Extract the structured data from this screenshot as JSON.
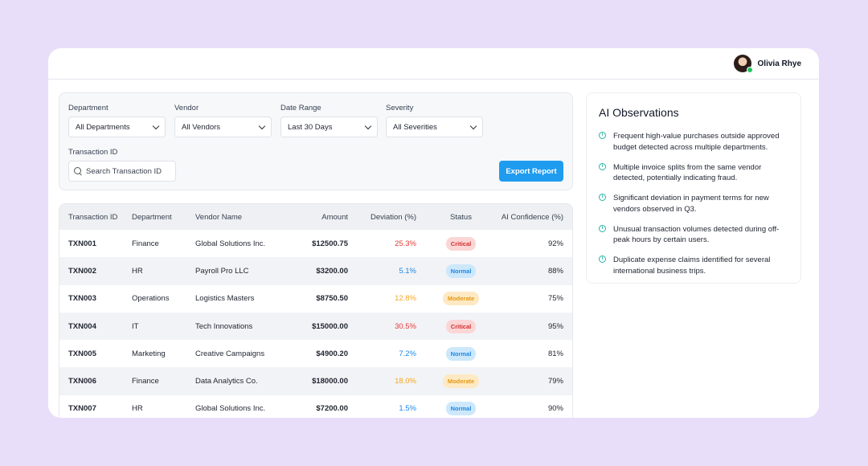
{
  "user": {
    "name": "Olivia Rhye"
  },
  "filters": {
    "department": {
      "label": "Department",
      "value": "All Departments"
    },
    "vendor": {
      "label": "Vendor",
      "value": "All Vendors"
    },
    "date_range": {
      "label": "Date Range",
      "value": "Last 30 Days"
    },
    "severity": {
      "label": "Severity",
      "value": "All Severities"
    },
    "transaction_id": {
      "label": "Transaction ID",
      "placeholder": "Search Transaction ID"
    },
    "export_label": "Export Report"
  },
  "table": {
    "headers": [
      "Transaction ID",
      "Department",
      "Vendor Name",
      "Amount",
      "Deviation (%)",
      "Status",
      "AI Confidence (%)"
    ],
    "rows": [
      {
        "id": "TXN001",
        "department": "Finance",
        "vendor": "Global Solutions Inc.",
        "amount": "$12500.75",
        "deviation": "25.3%",
        "status": "Critical",
        "confidence": "92%"
      },
      {
        "id": "TXN002",
        "department": "HR",
        "vendor": "Payroll Pro LLC",
        "amount": "$3200.00",
        "deviation": "5.1%",
        "status": "Normal",
        "confidence": "88%"
      },
      {
        "id": "TXN003",
        "department": "Operations",
        "vendor": "Logistics Masters",
        "amount": "$8750.50",
        "deviation": "12.8%",
        "status": "Moderate",
        "confidence": "75%"
      },
      {
        "id": "TXN004",
        "department": "IT",
        "vendor": "Tech Innovations",
        "amount": "$15000.00",
        "deviation": "30.5%",
        "status": "Critical",
        "confidence": "95%"
      },
      {
        "id": "TXN005",
        "department": "Marketing",
        "vendor": "Creative Campaigns",
        "amount": "$4900.20",
        "deviation": "7.2%",
        "status": "Normal",
        "confidence": "81%"
      },
      {
        "id": "TXN006",
        "department": "Finance",
        "vendor": "Data Analytics Co.",
        "amount": "$18000.00",
        "deviation": "18.0%",
        "status": "Moderate",
        "confidence": "79%"
      },
      {
        "id": "TXN007",
        "department": "HR",
        "vendor": "Global Solutions Inc.",
        "amount": "$7200.00",
        "deviation": "1.5%",
        "status": "Normal",
        "confidence": "90%"
      }
    ]
  },
  "observations": {
    "title": "AI Observations",
    "items": [
      "Frequent high-value purchases outside approved budget detected across multiple departments.",
      "Multiple invoice splits from the same vendor detected, potentially indicating fraud.",
      "Significant deviation in payment terms for new vendors observed in Q3.",
      "Unusual transaction volumes detected during off-peak hours by certain users.",
      "Duplicate expense claims identified for several international business trips."
    ]
  },
  "colors": {
    "accent": "#1f9cf0",
    "critical": "#e53935",
    "normal": "#1e88e5",
    "moderate": "#f5a623",
    "info_icon": "#26b5a4",
    "background": "#e8defa"
  }
}
